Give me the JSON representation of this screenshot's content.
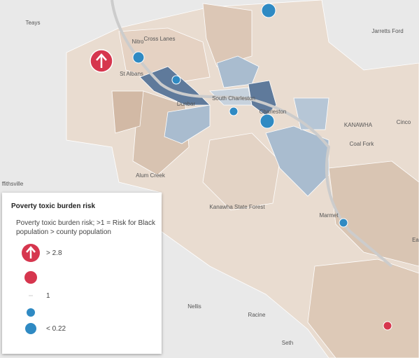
{
  "map": {
    "places": [
      "Teays",
      "Nitro",
      "Cross Lanes",
      "St Albans",
      "Dunbar",
      "South Charleston",
      "Charleston",
      "KANAWHA",
      "Coal Fork",
      "Cinco",
      "Jarretts Ford",
      "Alum Creek",
      "Kanawha State Forest",
      "Marmet",
      "Nellis",
      "Racine",
      "Seth",
      "ffithsville",
      "Ea"
    ]
  },
  "legend": {
    "title": "Poverty toxic burden risk",
    "description": "Poverty toxic burden risk; >1 = Risk for Black population > county population",
    "items": [
      "> 2.8",
      "1",
      "< 0.22"
    ]
  }
}
